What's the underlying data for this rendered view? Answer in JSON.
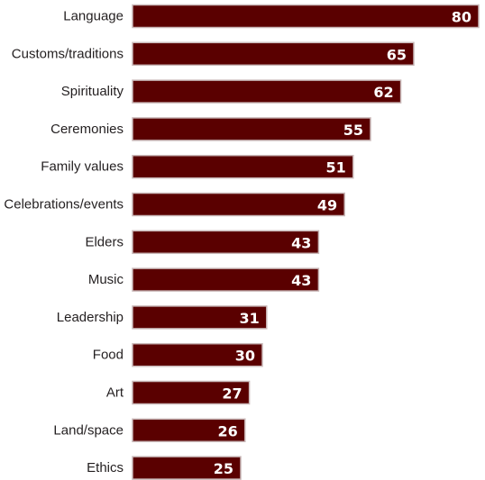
{
  "chart_data": {
    "type": "bar",
    "orientation": "horizontal",
    "title": "",
    "xlabel": "",
    "ylabel": "",
    "xlim": [
      0,
      82
    ],
    "grid": false,
    "legend": "none",
    "bar_color": "#5a0000",
    "bar_border_color": "#c9b8b8",
    "value_label_color": "#ffffff",
    "categories": [
      "Language",
      "Customs/traditions",
      "Spirituality",
      "Ceremonies",
      "Family values",
      "Celebrations/events",
      "Elders",
      "Music",
      "Leadership",
      "Food",
      "Art",
      "Land/space",
      "Ethics"
    ],
    "values": [
      80,
      65,
      62,
      55,
      51,
      49,
      43,
      43,
      31,
      30,
      27,
      26,
      25
    ]
  }
}
